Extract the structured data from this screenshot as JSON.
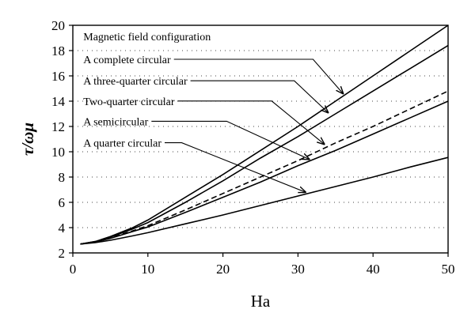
{
  "chart_data": {
    "type": "line",
    "title": "",
    "xlabel": "Ha",
    "ylabel": "τ/ωμ",
    "xlim": [
      0,
      50
    ],
    "ylim": [
      2,
      20
    ],
    "xticks": [
      0,
      10,
      20,
      30,
      40,
      50
    ],
    "yticks": [
      2,
      4,
      6,
      8,
      10,
      12,
      14,
      16,
      18,
      20
    ],
    "grid": "dotted horizontal",
    "legend_title": "Magnetic field configuration",
    "series": [
      {
        "name": "A complete circular",
        "style": "solid",
        "x": [
          1,
          3,
          5,
          8,
          10,
          15,
          20,
          25,
          30,
          35,
          40,
          45,
          50
        ],
        "y": [
          2.7,
          2.9,
          3.3,
          4.0,
          4.6,
          6.4,
          8.2,
          10.1,
          12.0,
          14.0,
          16.0,
          18.0,
          20.0
        ]
      },
      {
        "name": "A three-quarter circular",
        "style": "solid",
        "x": [
          1,
          3,
          5,
          8,
          10,
          15,
          20,
          25,
          30,
          35,
          40,
          45,
          50
        ],
        "y": [
          2.7,
          2.9,
          3.25,
          3.9,
          4.4,
          6.0,
          7.7,
          9.5,
          11.2,
          13.0,
          14.8,
          16.6,
          18.4
        ]
      },
      {
        "name": "Two-quarter circular",
        "style": "dashed",
        "x": [
          1,
          3,
          5,
          8,
          10,
          15,
          20,
          25,
          30,
          35,
          40,
          45,
          50
        ],
        "y": [
          2.7,
          2.88,
          3.2,
          3.75,
          4.15,
          5.4,
          6.7,
          8.0,
          9.3,
          10.7,
          12.0,
          13.4,
          14.8
        ]
      },
      {
        "name": "A semicircular",
        "style": "solid",
        "x": [
          1,
          3,
          5,
          8,
          10,
          15,
          20,
          25,
          30,
          35,
          40,
          45,
          50
        ],
        "y": [
          2.7,
          2.87,
          3.15,
          3.7,
          4.05,
          5.2,
          6.4,
          7.6,
          8.9,
          10.1,
          11.4,
          12.7,
          14.0
        ]
      },
      {
        "name": "A quarter circular",
        "style": "solid",
        "x": [
          1,
          3,
          5,
          8,
          10,
          15,
          20,
          25,
          30,
          35,
          40,
          45,
          50
        ],
        "y": [
          2.7,
          2.82,
          3.0,
          3.35,
          3.6,
          4.3,
          5.0,
          5.75,
          6.5,
          7.25,
          8.0,
          8.8,
          9.55
        ]
      }
    ],
    "annotations": [
      {
        "series": 0,
        "label_x": 1.4,
        "label_y": 17.0,
        "elbow_x": 32.0,
        "target_x": 36.0,
        "target_y": 14.6
      },
      {
        "series": 1,
        "label_x": 1.4,
        "label_y": 15.3,
        "elbow_x": 29.5,
        "target_x": 34.0,
        "target_y": 13.1
      },
      {
        "series": 2,
        "label_x": 1.4,
        "label_y": 13.7,
        "elbow_x": 26.5,
        "target_x": 33.5,
        "target_y": 10.6
      },
      {
        "series": 3,
        "label_x": 1.4,
        "label_y": 12.1,
        "elbow_x": 20.5,
        "target_x": 31.5,
        "target_y": 9.4
      },
      {
        "series": 4,
        "label_x": 1.4,
        "label_y": 10.4,
        "elbow_x": 14.5,
        "target_x": 31.0,
        "target_y": 6.8
      }
    ]
  }
}
